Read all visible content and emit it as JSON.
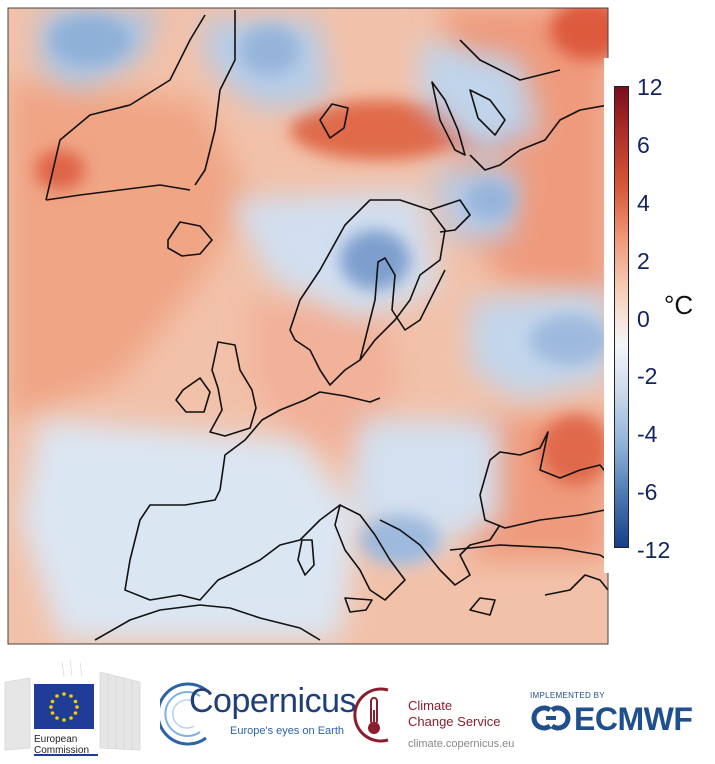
{
  "colorbar": {
    "unit": "°C",
    "ticks": [
      "12",
      "6",
      "4",
      "2",
      "0",
      "-2",
      "-4",
      "-6",
      "-12"
    ],
    "colors": [
      "#7a0d1d",
      "#b2312a",
      "#d8593a",
      "#f0997a",
      "#f7cdb8",
      "#f4f6fa",
      "#c8d8ea",
      "#8fb1d6",
      "#4a77b3",
      "#173e87"
    ]
  },
  "map": {
    "background_color": "#f2c1a9",
    "warm_color": "#ef9a7b",
    "strong_warm_color": "#dd5a3e",
    "cool_color": "#bcd1ea",
    "strong_cool_color": "#6f96cb",
    "coastline_color": "#111111"
  },
  "logos": {
    "ec_line1": "European",
    "ec_line2": "Commission",
    "copernicus_name": "Copernicus",
    "copernicus_tagline": "Europe's eyes on Earth",
    "c3s_line1": "Climate",
    "c3s_line2": "Change Service",
    "c3s_url": "climate.copernicus.eu",
    "ecmwf_implemented": "IMPLEMENTED BY",
    "ecmwf_name": "ECMWF"
  }
}
